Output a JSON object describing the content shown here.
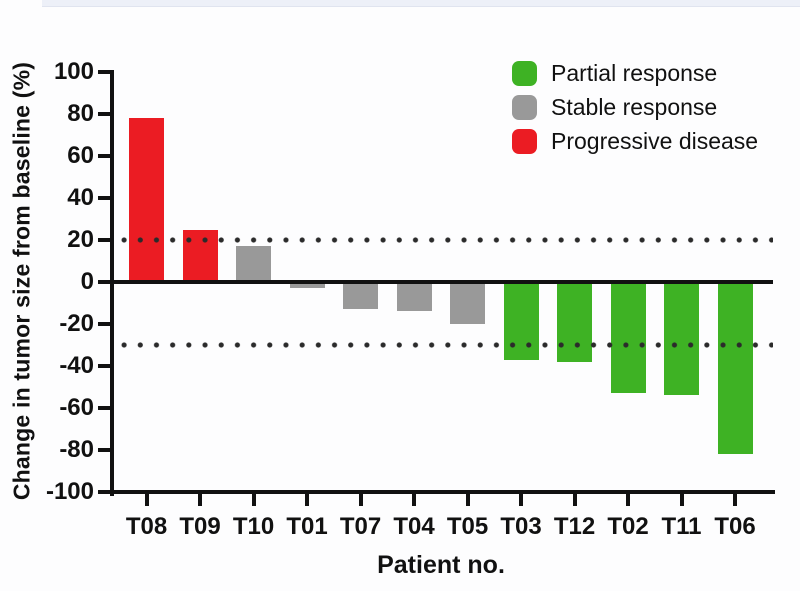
{
  "chart_data": {
    "type": "bar",
    "variant": "waterfall",
    "title": "",
    "xlabel": "Patient no.",
    "ylabel": "Change in tumor size from baseline (%)",
    "ylim": [
      -100,
      100
    ],
    "yticks": [
      100,
      80,
      60,
      40,
      20,
      0,
      -20,
      -40,
      -60,
      -80,
      -100
    ],
    "categories": [
      "T08",
      "T09",
      "T10",
      "T01",
      "T07",
      "T04",
      "T05",
      "T03",
      "T12",
      "T02",
      "T11",
      "T06"
    ],
    "values": [
      78,
      25,
      17,
      -3,
      -13,
      -14,
      -20,
      -37,
      -38,
      -53,
      -54,
      -82
    ],
    "responses": [
      "progressive",
      "progressive",
      "stable",
      "stable",
      "stable",
      "stable",
      "stable",
      "partial",
      "partial",
      "partial",
      "partial",
      "partial"
    ],
    "reference_lines": [
      20,
      -30
    ],
    "grid": false,
    "legend_position": "top-right",
    "legend": [
      {
        "label": "Partial response",
        "color_key": "partial"
      },
      {
        "label": "Stable response",
        "color_key": "stable"
      },
      {
        "label": "Progressive disease",
        "color_key": "progressive"
      }
    ],
    "colors": {
      "partial": "#3EB224",
      "stable": "#999999",
      "progressive": "#EB1C23",
      "axis": "#111111",
      "ref_dots": "#2b2b2b",
      "top_strip": "#edf0f8"
    }
  }
}
